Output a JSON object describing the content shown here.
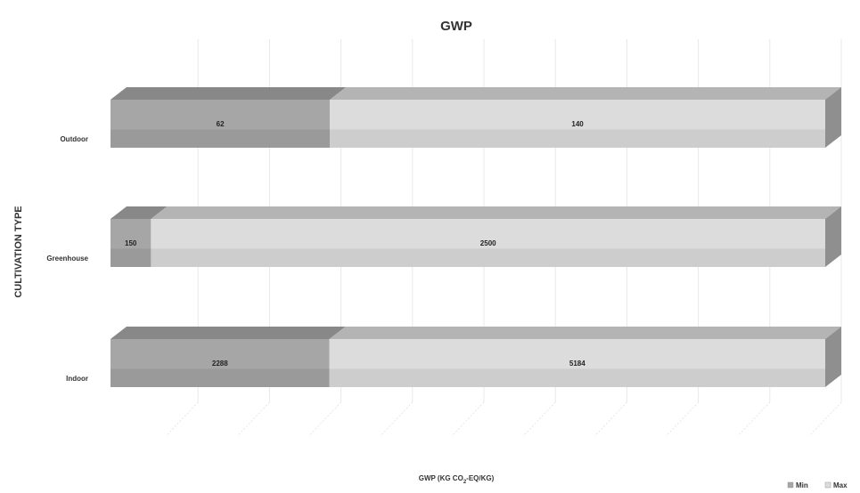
{
  "chart_data": {
    "type": "bar",
    "orientation": "horizontal",
    "stacked": true,
    "style": "3d",
    "title": "GWP",
    "xlabel_prefix": "GWP (KG CO",
    "xlabel_sub": "2",
    "xlabel_suffix": "-EQ/KG)",
    "ylabel": "CULTIVATION TYPE",
    "categories": [
      "Outdoor",
      "Greenhouse",
      "Indoor"
    ],
    "series": [
      {
        "name": "Min",
        "values": [
          62,
          150,
          2288
        ],
        "color": "#a6a6a6"
      },
      {
        "name": "Max",
        "values": [
          140,
          2500,
          5184
        ],
        "color": "#dcdcdc"
      }
    ],
    "normalized_per_category": true,
    "grid": true,
    "legend": "bottom-right"
  }
}
